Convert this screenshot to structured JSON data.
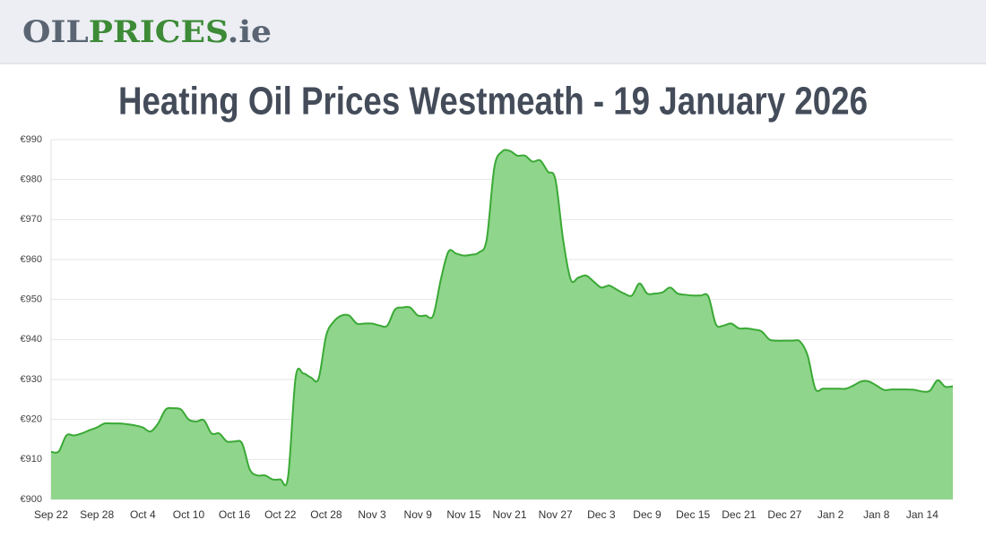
{
  "header": {
    "logo": [
      "OIL",
      "PRICES",
      ".ie"
    ]
  },
  "chart_data": {
    "type": "area",
    "title": "Heating Oil Prices Westmeath - 19 January 2026",
    "categories": [
      "Sep 22",
      null,
      null,
      null,
      null,
      null,
      "Sep 28",
      null,
      null,
      null,
      null,
      null,
      "Oct 4",
      null,
      null,
      null,
      null,
      null,
      "Oct 10",
      null,
      null,
      null,
      null,
      null,
      "Oct 16",
      null,
      null,
      null,
      null,
      null,
      "Oct 22",
      null,
      null,
      null,
      null,
      null,
      "Oct 28",
      null,
      null,
      null,
      null,
      null,
      "Nov 3",
      null,
      null,
      null,
      null,
      null,
      "Nov 9",
      null,
      null,
      null,
      null,
      null,
      "Nov 15",
      null,
      null,
      null,
      null,
      null,
      "Nov 21",
      null,
      null,
      null,
      null,
      null,
      "Nov 27",
      null,
      null,
      null,
      null,
      null,
      "Dec 3",
      null,
      null,
      null,
      null,
      null,
      "Dec 9",
      null,
      null,
      null,
      null,
      null,
      "Dec 15",
      null,
      null,
      null,
      null,
      null,
      "Dec 21",
      null,
      null,
      null,
      null,
      null,
      "Dec 27",
      null,
      null,
      null,
      null,
      null,
      "Jan 2",
      null,
      null,
      null,
      null,
      null,
      "Jan 8",
      null,
      null,
      null,
      null,
      null,
      "Jan 14",
      null,
      null,
      null,
      null
    ],
    "values": [
      911.9,
      912,
      916,
      916,
      916.5,
      917.3,
      918,
      919,
      919,
      919,
      918.8,
      918.5,
      918,
      917,
      919,
      922.5,
      922.8,
      922.5,
      920,
      919.5,
      919.8,
      916.5,
      916.5,
      914.5,
      914.5,
      914,
      907.5,
      906,
      906,
      905,
      905,
      905.5,
      930.5,
      931.5,
      930.5,
      930.2,
      941,
      944.5,
      946,
      946,
      944,
      944,
      944,
      943.5,
      943.5,
      947.5,
      948,
      948,
      946,
      946,
      946,
      955,
      962,
      961.5,
      961,
      961.2,
      961.8,
      965,
      983,
      987,
      987.2,
      986,
      986,
      984.5,
      984.8,
      982,
      980,
      965,
      955,
      955.5,
      956,
      954.5,
      953,
      953.5,
      952.5,
      951.5,
      951,
      954,
      951.5,
      951.5,
      951.8,
      953,
      951.5,
      951.2,
      951,
      951,
      950.8,
      943.8,
      943.5,
      944,
      942.8,
      942.8,
      942.5,
      942,
      940,
      939.7,
      939.7,
      939.7,
      939.5,
      936,
      927.7,
      927.7,
      927.7,
      927.7,
      927.7,
      928.5,
      929.5,
      929.5,
      928.5,
      927.4,
      927.5,
      927.5,
      927.5,
      927.4,
      927,
      927.2,
      929.8,
      928.2,
      928.3
    ],
    "color": "#3aa935",
    "fill_color": "#8fd58c",
    "ylim": [
      900,
      990
    ],
    "yticks": [
      {
        "value": 900,
        "label": "€900"
      },
      {
        "value": 910,
        "label": "€910"
      },
      {
        "value": 920,
        "label": "€920"
      },
      {
        "value": 930,
        "label": "€930"
      },
      {
        "value": 940,
        "label": "€940"
      },
      {
        "value": 950,
        "label": "€950"
      },
      {
        "value": 960,
        "label": "€960"
      },
      {
        "value": 970,
        "label": "€970"
      },
      {
        "value": 980,
        "label": "€980"
      },
      {
        "value": 990,
        "label": "€990"
      }
    ],
    "grid": true
  }
}
